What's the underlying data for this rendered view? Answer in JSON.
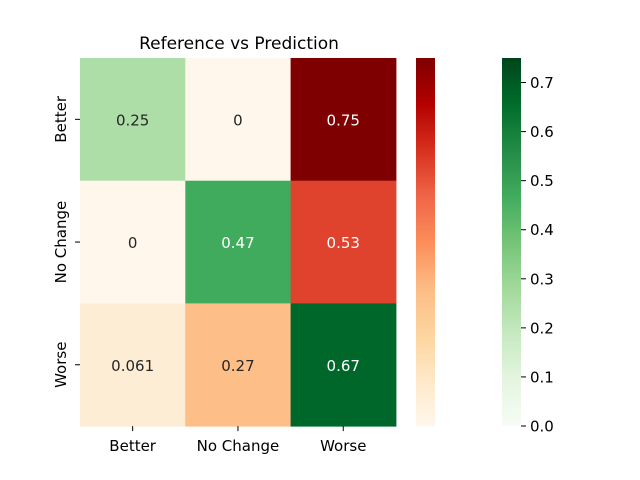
{
  "chart_data": {
    "type": "heatmap",
    "title": "Reference vs Prediction",
    "xlabel": "",
    "ylabel": "",
    "x_categories": [
      "Better",
      "No Change",
      "Worse"
    ],
    "y_categories": [
      "Better",
      "No Change",
      "Worse"
    ],
    "values": [
      [
        0.25,
        0,
        0.75
      ],
      [
        0,
        0.47,
        0.53
      ],
      [
        0.061,
        0.27,
        0.67
      ]
    ],
    "cell_labels": [
      [
        "0.25",
        "0",
        "0.75"
      ],
      [
        "0",
        "0.47",
        "0.53"
      ],
      [
        "0.061",
        "0.27",
        "0.67"
      ]
    ],
    "colormaps": {
      "diagonal": "Greens",
      "off_diagonal": "OrRd"
    },
    "colorbar_left": {
      "colormap": "OrRd",
      "range": [
        0,
        0.75
      ],
      "ticks": []
    },
    "colorbar_right": {
      "colormap": "Greens",
      "range": [
        0,
        0.75
      ],
      "ticks": [
        "0.0",
        "0.1",
        "0.2",
        "0.3",
        "0.4",
        "0.5",
        "0.6",
        "0.7"
      ]
    },
    "grid": false
  }
}
